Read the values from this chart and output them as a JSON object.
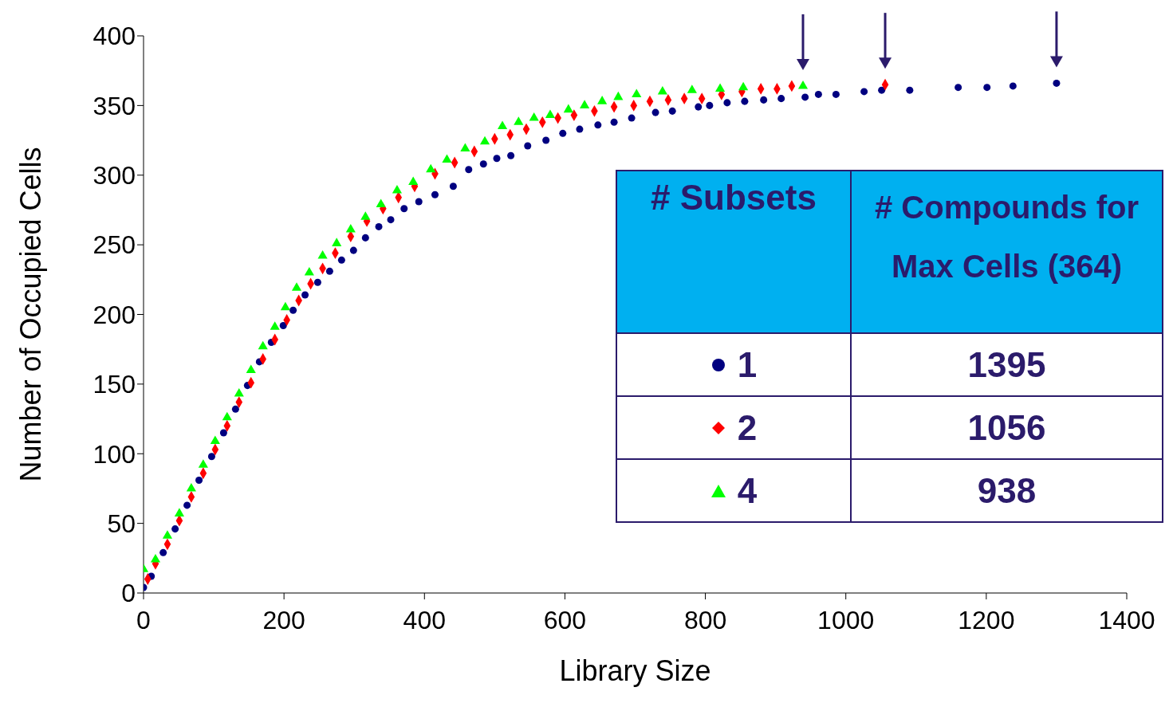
{
  "chart_data": {
    "type": "scatter",
    "xlabel": "Library Size",
    "ylabel": "Number of Occupied Cells",
    "legend_title": "# Subsets",
    "legend": "bottom right",
    "grid": false,
    "xlim": [
      0,
      1400
    ],
    "xticks": [
      0,
      200,
      400,
      600,
      800,
      1000,
      1200,
      1400
    ],
    "ylim": [
      0,
      400
    ],
    "yticks": [
      0,
      50,
      100,
      150,
      200,
      250,
      300,
      350,
      400
    ],
    "annotations": [
      "# Compounds for Max Cells (364)",
      "1395",
      "1056",
      "938"
    ],
    "series": [
      {
        "name": "1",
        "color": "#000080",
        "marker": "circle",
        "x": [
          0,
          11,
          28,
          45,
          62,
          79,
          97,
          114,
          131,
          148,
          165,
          182,
          199,
          213,
          230,
          248,
          265,
          282,
          299,
          316,
          335,
          352,
          371,
          392,
          415,
          441,
          463,
          484,
          503,
          523,
          547,
          573,
          597,
          621,
          647,
          670,
          695,
          729,
          753,
          790,
          806,
          831,
          856,
          883,
          908,
          942,
          961,
          986,
          1026,
          1051,
          1091,
          1160,
          1201,
          1238,
          1300
        ],
        "values": [
          4,
          12,
          29,
          46,
          63,
          81,
          98,
          115,
          132,
          149,
          166,
          180,
          192,
          203,
          214,
          223,
          231,
          239,
          246,
          255,
          263,
          268,
          276,
          281,
          286,
          292,
          304,
          308,
          312,
          314,
          321,
          325,
          330,
          333,
          336,
          338,
          341,
          345,
          346,
          349,
          350,
          352,
          353,
          354,
          355,
          356,
          358,
          358,
          360,
          361,
          361,
          363,
          363,
          364,
          366
        ]
      },
      {
        "name": "2",
        "color": "#ff0000",
        "marker": "diamond",
        "x": [
          6,
          17,
          34,
          51,
          68,
          85,
          102,
          119,
          136,
          153,
          170,
          187,
          204,
          221,
          238,
          255,
          273,
          295,
          318,
          341,
          363,
          386,
          415,
          443,
          471,
          500,
          522,
          545,
          568,
          590,
          613,
          642,
          670,
          698,
          721,
          747,
          770,
          795,
          823,
          852,
          879,
          902,
          923,
          1056
        ],
        "values": [
          10,
          21,
          35,
          52,
          69,
          86,
          103,
          120,
          137,
          151,
          168,
          182,
          196,
          210,
          222,
          233,
          244,
          256,
          267,
          276,
          284,
          292,
          301,
          309,
          317,
          326,
          329,
          333,
          338,
          341,
          343,
          346,
          349,
          350,
          353,
          354,
          355,
          355,
          358,
          360,
          362,
          362,
          364,
          365
        ]
      },
      {
        "name": "4",
        "color": "#00ff00",
        "marker": "triangle",
        "x": [
          0,
          17,
          34,
          51,
          68,
          85,
          102,
          119,
          136,
          153,
          170,
          187,
          202,
          218,
          236,
          255,
          275,
          295,
          316,
          338,
          361,
          384,
          409,
          432,
          458,
          486,
          511,
          534,
          556,
          579,
          605,
          628,
          653,
          676,
          702,
          739,
          781,
          821,
          854,
          939
        ],
        "values": [
          17,
          24,
          41,
          57,
          75,
          92,
          109,
          126,
          143,
          160,
          177,
          191,
          205,
          219,
          230,
          242,
          251,
          261,
          270,
          279,
          289,
          295,
          304,
          311,
          319,
          324,
          335,
          338,
          341,
          343,
          347,
          350,
          353,
          356,
          358,
          360,
          361,
          362,
          363,
          364
        ]
      }
    ]
  }
}
